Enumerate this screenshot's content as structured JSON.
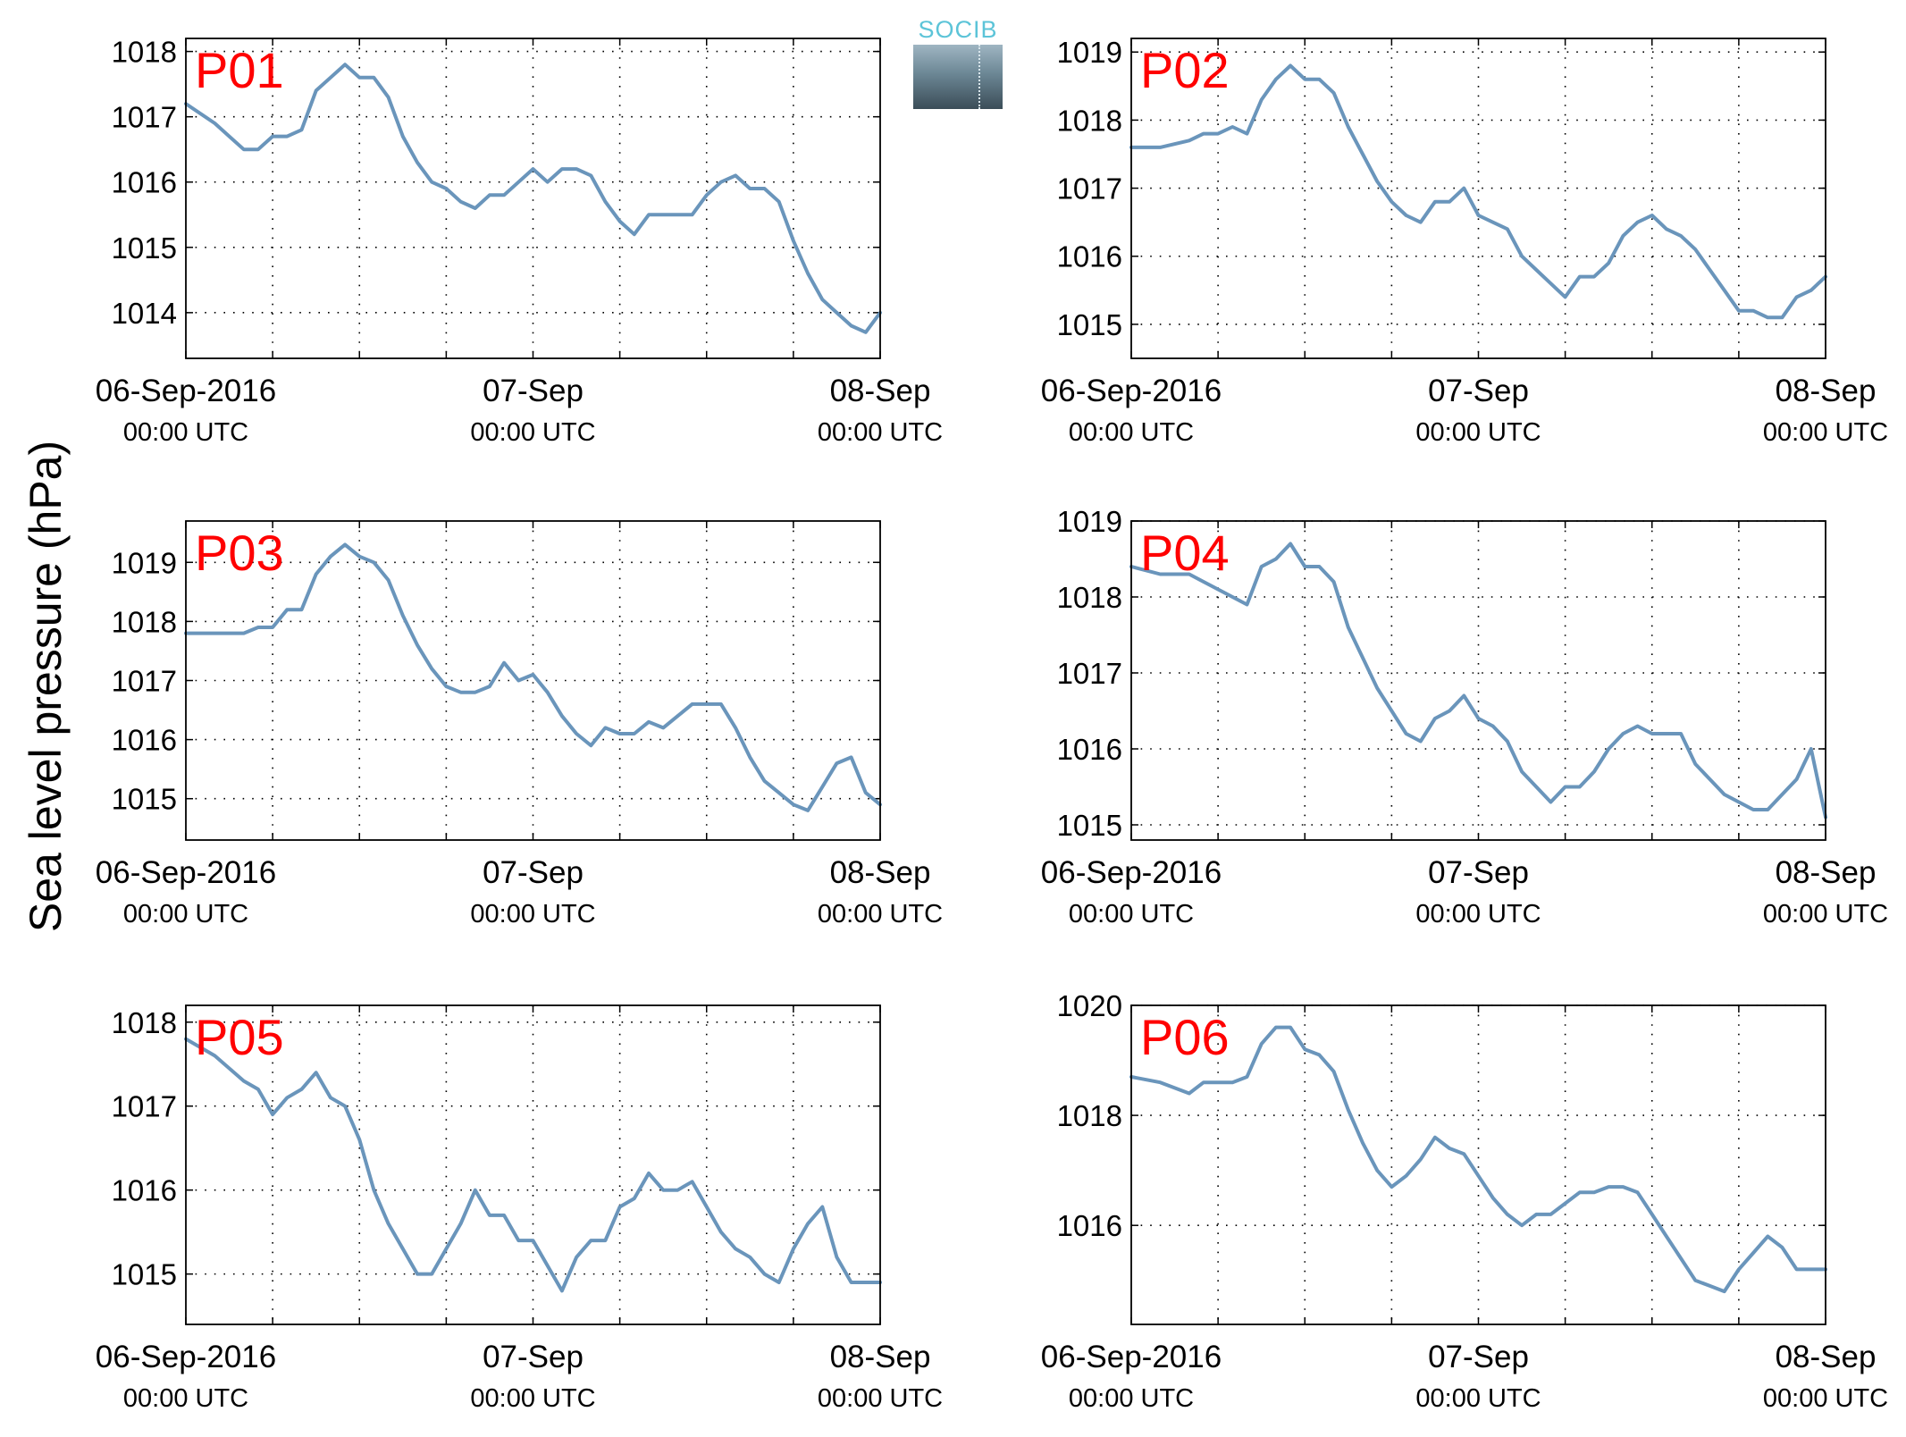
{
  "figure": {
    "ylabel": "Sea level pressure (hPa)",
    "logo_text": "SOCIB",
    "line_color": "#6a95bb",
    "panel_label_color": "#ff0000",
    "x_ticks": [
      {
        "day": 0,
        "top": "06-Sep-2016",
        "bottom": "00:00 UTC"
      },
      {
        "day": 1,
        "top": "07-Sep",
        "bottom": "00:00 UTC"
      },
      {
        "day": 2,
        "top": "08-Sep",
        "bottom": "00:00 UTC"
      }
    ]
  },
  "chart_data": [
    {
      "type": "line",
      "panel": "P01",
      "xlabel": "",
      "ylabel": "",
      "xlim": [
        "06-Sep-2016 00:00",
        "08-Sep-2016 00:00"
      ],
      "ylim": [
        1013.3,
        1018.2
      ],
      "yticks": [
        1014,
        1015,
        1016,
        1017,
        1018
      ],
      "grid": true,
      "x_hours": [
        0,
        2,
        4,
        5,
        6,
        7,
        8,
        9,
        10,
        11,
        12,
        13,
        14,
        15,
        16,
        17,
        18,
        19,
        20,
        21,
        22,
        23,
        24,
        25,
        26,
        27,
        28,
        29,
        30,
        31,
        32,
        33,
        34,
        35,
        36,
        37,
        38,
        39,
        40,
        41,
        42,
        43,
        44,
        45,
        46,
        47,
        48
      ],
      "values": [
        1017.2,
        1016.9,
        1016.5,
        1016.5,
        1016.7,
        1016.7,
        1016.8,
        1017.4,
        1017.6,
        1017.8,
        1017.6,
        1017.6,
        1017.3,
        1016.7,
        1016.3,
        1016.0,
        1015.9,
        1015.7,
        1015.6,
        1015.8,
        1015.8,
        1016.0,
        1016.2,
        1016.0,
        1016.2,
        1016.2,
        1016.1,
        1015.7,
        1015.4,
        1015.2,
        1015.5,
        1015.5,
        1015.5,
        1015.5,
        1015.8,
        1016.0,
        1016.1,
        1015.9,
        1015.9,
        1015.7,
        1015.1,
        1014.6,
        1014.2,
        1014.0,
        1013.8,
        1013.7,
        1014.0
      ]
    },
    {
      "type": "line",
      "panel": "P02",
      "xlabel": "",
      "ylabel": "",
      "xlim": [
        "06-Sep-2016 00:00",
        "08-Sep-2016 00:00"
      ],
      "ylim": [
        1014.5,
        1019.2
      ],
      "yticks": [
        1015,
        1016,
        1017,
        1018,
        1019
      ],
      "grid": true,
      "x_hours": [
        0,
        2,
        4,
        5,
        6,
        7,
        8,
        9,
        10,
        11,
        12,
        13,
        14,
        15,
        16,
        17,
        18,
        19,
        20,
        21,
        22,
        23,
        24,
        25,
        26,
        27,
        28,
        29,
        30,
        31,
        32,
        33,
        34,
        35,
        36,
        37,
        38,
        39,
        40,
        41,
        42,
        43,
        44,
        45,
        46,
        47,
        48
      ],
      "values": [
        1017.6,
        1017.6,
        1017.7,
        1017.8,
        1017.8,
        1017.9,
        1017.8,
        1018.3,
        1018.6,
        1018.8,
        1018.6,
        1018.6,
        1018.4,
        1017.9,
        1017.5,
        1017.1,
        1016.8,
        1016.6,
        1016.5,
        1016.8,
        1016.8,
        1017.0,
        1016.6,
        1016.5,
        1016.4,
        1016.0,
        1015.8,
        1015.6,
        1015.4,
        1015.7,
        1015.7,
        1015.9,
        1016.3,
        1016.5,
        1016.6,
        1016.4,
        1016.3,
        1016.1,
        1015.8,
        1015.5,
        1015.2,
        1015.2,
        1015.1,
        1015.1,
        1015.4,
        1015.5,
        1015.7
      ]
    },
    {
      "type": "line",
      "panel": "P03",
      "xlabel": "",
      "ylabel": "",
      "xlim": [
        "06-Sep-2016 00:00",
        "08-Sep-2016 00:00"
      ],
      "ylim": [
        1014.3,
        1019.7
      ],
      "yticks": [
        1015,
        1016,
        1017,
        1018,
        1019
      ],
      "grid": true,
      "x_hours": [
        0,
        2,
        4,
        5,
        6,
        7,
        8,
        9,
        10,
        11,
        12,
        13,
        14,
        15,
        16,
        17,
        18,
        19,
        20,
        21,
        22,
        23,
        24,
        25,
        26,
        27,
        28,
        29,
        30,
        31,
        32,
        33,
        34,
        35,
        36,
        37,
        38,
        39,
        40,
        41,
        42,
        43,
        44,
        45,
        46,
        47,
        48
      ],
      "values": [
        1017.8,
        1017.8,
        1017.8,
        1017.9,
        1017.9,
        1018.2,
        1018.2,
        1018.8,
        1019.1,
        1019.3,
        1019.1,
        1019.0,
        1018.7,
        1018.1,
        1017.6,
        1017.2,
        1016.9,
        1016.8,
        1016.8,
        1016.9,
        1017.3,
        1017.0,
        1017.1,
        1016.8,
        1016.4,
        1016.1,
        1015.9,
        1016.2,
        1016.1,
        1016.1,
        1016.3,
        1016.2,
        1016.4,
        1016.6,
        1016.6,
        1016.6,
        1016.2,
        1015.7,
        1015.3,
        1015.1,
        1014.9,
        1014.8,
        1015.2,
        1015.6,
        1015.7,
        1015.1,
        1014.9
      ]
    },
    {
      "type": "line",
      "panel": "P04",
      "xlabel": "",
      "ylabel": "",
      "xlim": [
        "06-Sep-2016 00:00",
        "08-Sep-2016 00:00"
      ],
      "ylim": [
        1014.8,
        1019.0
      ],
      "yticks": [
        1015,
        1016,
        1017,
        1018,
        1019
      ],
      "grid": true,
      "x_hours": [
        0,
        2,
        4,
        5,
        6,
        7,
        8,
        9,
        10,
        11,
        12,
        13,
        14,
        15,
        16,
        17,
        18,
        19,
        20,
        21,
        22,
        23,
        24,
        25,
        26,
        27,
        28,
        29,
        30,
        31,
        32,
        33,
        34,
        35,
        36,
        37,
        38,
        39,
        40,
        41,
        42,
        43,
        44,
        45,
        46,
        47,
        48
      ],
      "values": [
        1018.4,
        1018.3,
        1018.3,
        1018.2,
        1018.1,
        1018.0,
        1017.9,
        1018.4,
        1018.5,
        1018.7,
        1018.4,
        1018.4,
        1018.2,
        1017.6,
        1017.2,
        1016.8,
        1016.5,
        1016.2,
        1016.1,
        1016.4,
        1016.5,
        1016.7,
        1016.4,
        1016.3,
        1016.1,
        1015.7,
        1015.5,
        1015.3,
        1015.5,
        1015.5,
        1015.7,
        1016.0,
        1016.2,
        1016.3,
        1016.2,
        1016.2,
        1016.2,
        1015.8,
        1015.6,
        1015.4,
        1015.3,
        1015.2,
        1015.2,
        1015.4,
        1015.6,
        1016.0,
        1015.1
      ]
    },
    {
      "type": "line",
      "panel": "P05",
      "xlabel": "",
      "ylabel": "",
      "xlim": [
        "06-Sep-2016 00:00",
        "08-Sep-2016 00:00"
      ],
      "ylim": [
        1014.4,
        1018.2
      ],
      "yticks": [
        1015,
        1016,
        1017,
        1018
      ],
      "grid": true,
      "x_hours": [
        0,
        2,
        4,
        5,
        6,
        7,
        8,
        9,
        10,
        11,
        12,
        13,
        14,
        15,
        16,
        17,
        18,
        19,
        20,
        21,
        22,
        23,
        24,
        25,
        26,
        27,
        28,
        29,
        30,
        31,
        32,
        33,
        34,
        35,
        36,
        37,
        38,
        39,
        40,
        41,
        42,
        43,
        44,
        45,
        46,
        47,
        48
      ],
      "values": [
        1017.8,
        1017.6,
        1017.3,
        1017.2,
        1016.9,
        1017.1,
        1017.2,
        1017.4,
        1017.1,
        1017.0,
        1016.6,
        1016.0,
        1015.6,
        1015.3,
        1015.0,
        1015.0,
        1015.3,
        1015.6,
        1016.0,
        1015.7,
        1015.7,
        1015.4,
        1015.4,
        1015.1,
        1014.8,
        1015.2,
        1015.4,
        1015.4,
        1015.8,
        1015.9,
        1016.2,
        1016.0,
        1016.0,
        1016.1,
        1015.8,
        1015.5,
        1015.3,
        1015.2,
        1015.0,
        1014.9,
        1015.3,
        1015.6,
        1015.8,
        1015.2,
        1014.9,
        1014.9,
        1014.9
      ]
    },
    {
      "type": "line",
      "panel": "P06",
      "xlabel": "",
      "ylabel": "",
      "xlim": [
        "06-Sep-2016 00:00",
        "08-Sep-2016 00:00"
      ],
      "ylim": [
        1014.2,
        1020.0
      ],
      "yticks": [
        1016,
        1018,
        1020
      ],
      "grid": true,
      "x_hours": [
        0,
        2,
        4,
        5,
        6,
        7,
        8,
        9,
        10,
        11,
        12,
        13,
        14,
        15,
        16,
        17,
        18,
        19,
        20,
        21,
        22,
        23,
        24,
        25,
        26,
        27,
        28,
        29,
        30,
        31,
        32,
        33,
        34,
        35,
        36,
        37,
        38,
        39,
        40,
        41,
        42,
        43,
        44,
        45,
        46,
        47,
        48
      ],
      "values": [
        1018.7,
        1018.6,
        1018.4,
        1018.6,
        1018.6,
        1018.6,
        1018.7,
        1019.3,
        1019.6,
        1019.6,
        1019.2,
        1019.1,
        1018.8,
        1018.1,
        1017.5,
        1017.0,
        1016.7,
        1016.9,
        1017.2,
        1017.6,
        1017.4,
        1017.3,
        1016.9,
        1016.5,
        1016.2,
        1016.0,
        1016.2,
        1016.2,
        1016.4,
        1016.6,
        1016.6,
        1016.7,
        1016.7,
        1016.6,
        1016.2,
        1015.8,
        1015.4,
        1015.0,
        1014.9,
        1014.8,
        1015.2,
        1015.5,
        1015.8,
        1015.6,
        1015.2,
        1015.2,
        1015.2
      ]
    }
  ]
}
